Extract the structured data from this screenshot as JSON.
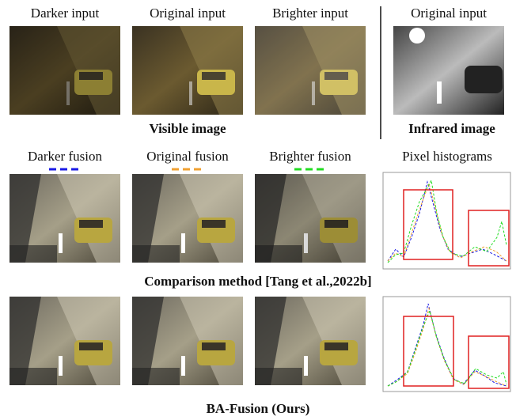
{
  "top_row": {
    "labels": [
      "Darker input",
      "Original input",
      "Brighter input",
      "Original input"
    ],
    "captions": [
      "Visible image",
      "Infrared image"
    ]
  },
  "middle_row": {
    "labels": [
      "Darker fusion",
      "Original fusion",
      "Brighter fusion",
      "Pixel histograms"
    ],
    "caption": "Comparison method [Tang et al.,2022b]"
  },
  "bottom_row": {
    "caption": "BA-Fusion (Ours)"
  }
}
